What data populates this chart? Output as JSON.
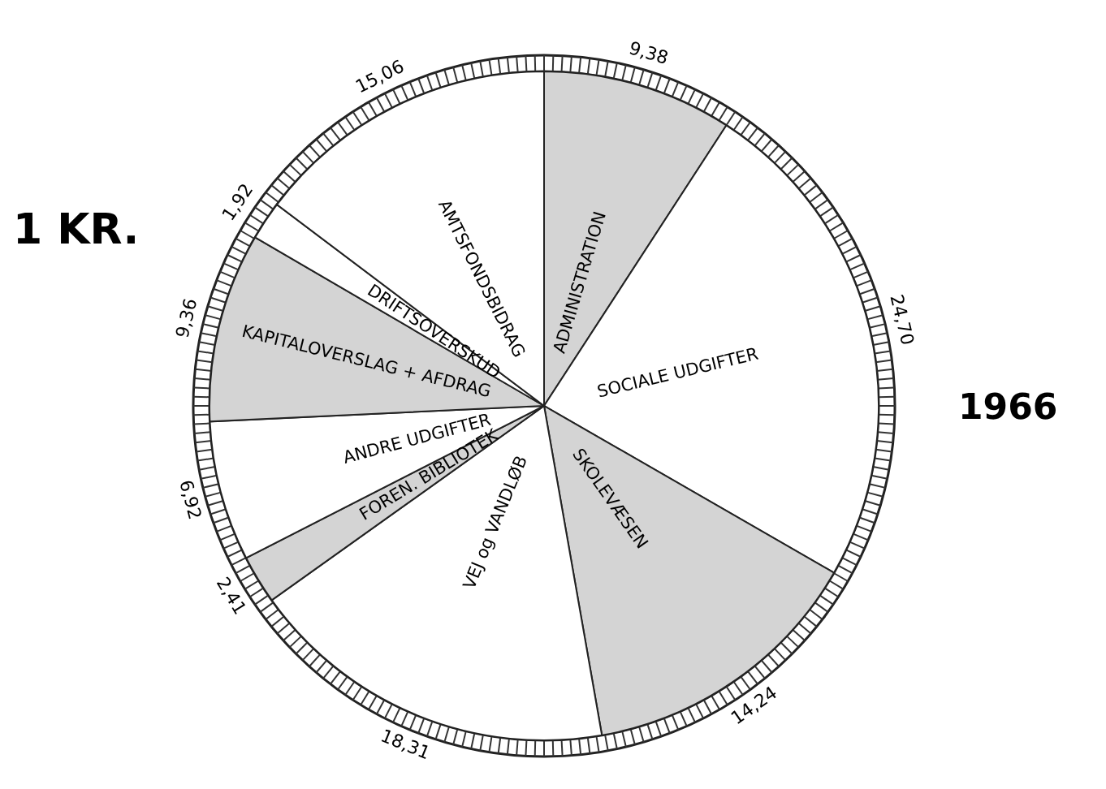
{
  "chart_data": {
    "type": "pie",
    "title": "1 KR.",
    "annotations": [
      "1966"
    ],
    "categories": [
      "ADMINISTRATION",
      "SOCIALE UDGIFTER",
      "SKOLEVÆSEN",
      "VEJ og VANDLØB",
      "FOREN. BIBLIOTEK",
      "ANDRE UDGIFTER",
      "KAPITALOVERSLAG + AFDRAG",
      "DRIFTSOVERSKUD",
      "AMTSFONDSBIDRAG"
    ],
    "values": [
      9.38,
      24.7,
      14.24,
      18.31,
      2.41,
      6.92,
      9.36,
      1.92,
      15.06
    ],
    "value_labels": [
      "9,38",
      "24,70",
      "14,24",
      "18,31",
      "2,41",
      "6,92",
      "9,36",
      "1,92",
      "15,06"
    ],
    "colors": [
      "#d4d4d4",
      "#ffffff",
      "#d4d4d4",
      "#ffffff",
      "#d4d4d4",
      "#ffffff",
      "#d4d4d4",
      "#ffffff",
      "#ffffff"
    ]
  }
}
